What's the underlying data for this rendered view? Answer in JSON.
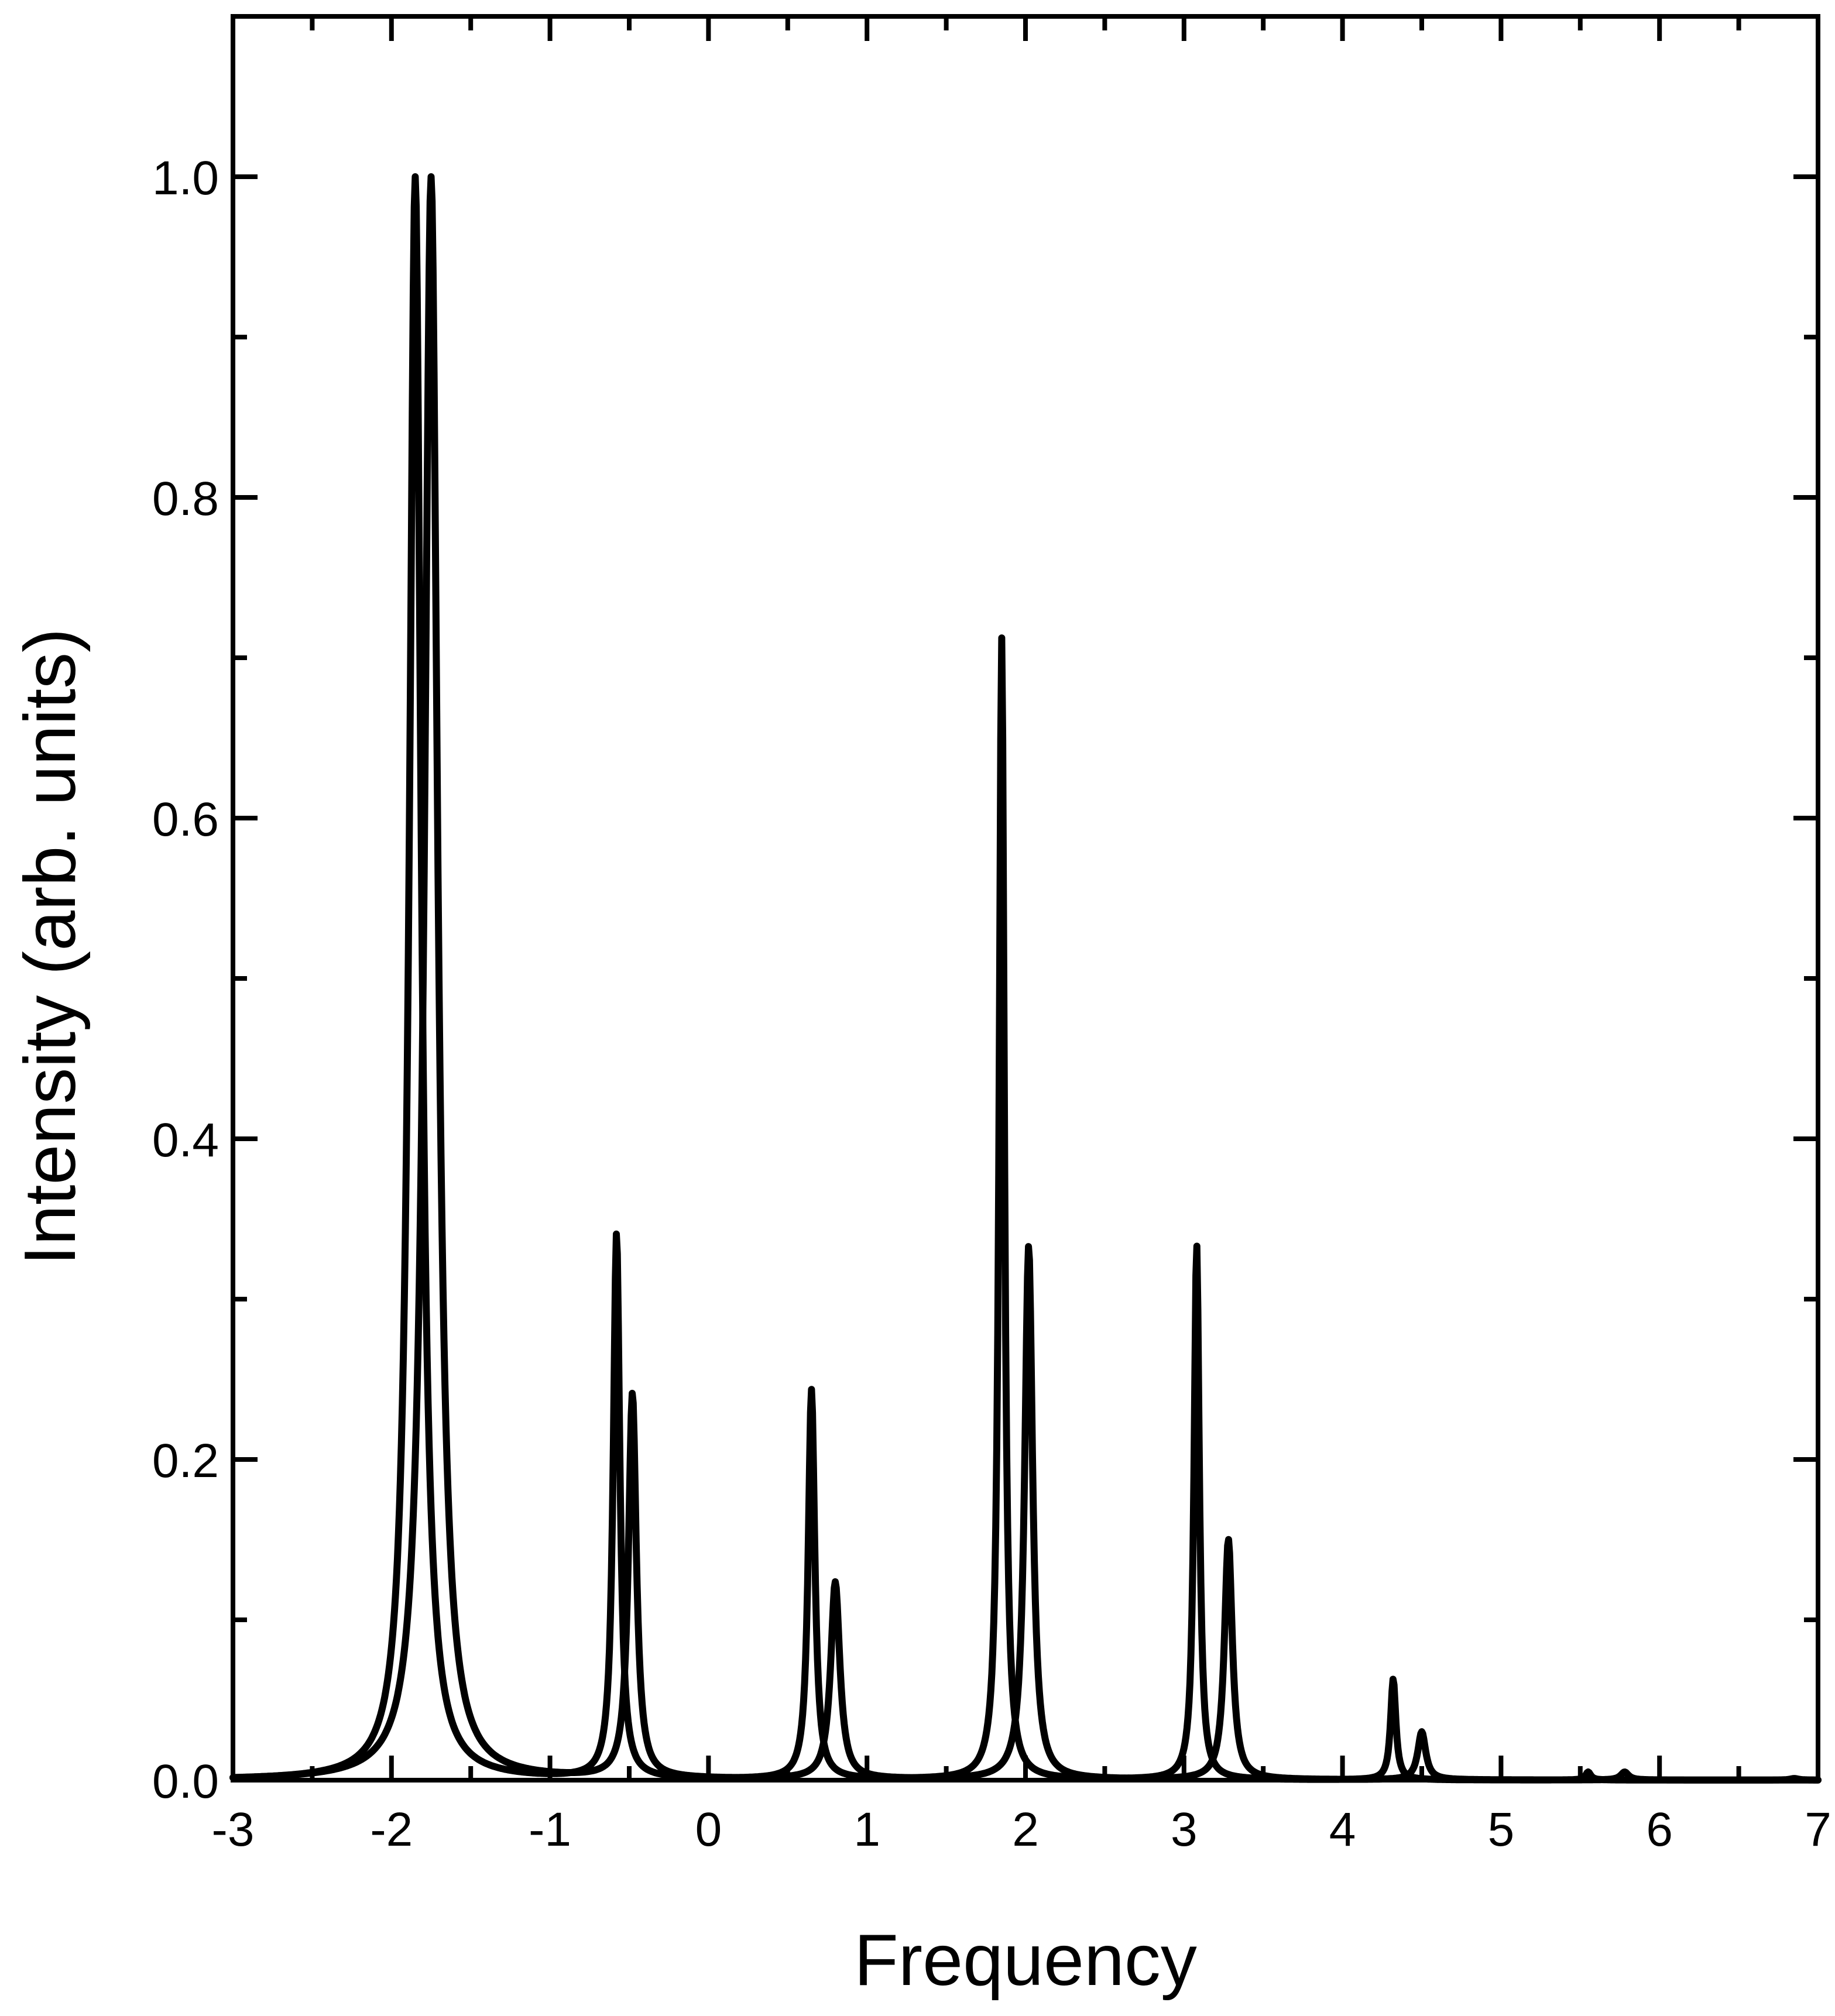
{
  "chart_data": {
    "type": "line",
    "title": "",
    "xlabel": "Frequency",
    "ylabel": "Intensity (arb. units)",
    "xlim": [
      -3,
      7
    ],
    "ylim": [
      0,
      1.1
    ],
    "xticks": [
      -3,
      -2,
      -1,
      0,
      1,
      2,
      3,
      4,
      5,
      6,
      7
    ],
    "xtick_labels": [
      "-3",
      "-2",
      "-1",
      "0",
      "1",
      "2",
      "3",
      "4",
      "5",
      "6",
      "7"
    ],
    "yticks_major": [
      0.0,
      0.2,
      0.4,
      0.6,
      0.8,
      1.0
    ],
    "ytick_labels": [
      "0.0",
      "0.2",
      "0.4",
      "0.6",
      "0.8",
      "1.0"
    ],
    "yticks_minor": [
      0.1,
      0.3,
      0.5,
      0.7,
      0.9
    ],
    "xticks_minor": [
      -2.5,
      -1.5,
      -0.5,
      0.5,
      1.5,
      2.5,
      3.5,
      4.5,
      5.5,
      6.5
    ],
    "grid": false,
    "line_color": "#000000",
    "series": [
      {
        "peaks": [
          {
            "x": -1.85,
            "y": 1.0,
            "w": 0.045
          },
          {
            "x": -0.58,
            "y": 0.34,
            "w": 0.025
          },
          {
            "x": 0.65,
            "y": 0.243,
            "w": 0.025
          },
          {
            "x": 1.85,
            "y": 0.712,
            "w": 0.02
          },
          {
            "x": 3.08,
            "y": 0.334,
            "w": 0.02
          },
          {
            "x": 4.32,
            "y": 0.063,
            "w": 0.02
          },
          {
            "x": 5.55,
            "y": 0.005,
            "w": 0.02
          }
        ]
      },
      {
        "peaks": [
          {
            "x": -1.75,
            "y": 1.0,
            "w": 0.05
          },
          {
            "x": -0.48,
            "y": 0.24,
            "w": 0.03
          },
          {
            "x": 0.8,
            "y": 0.123,
            "w": 0.035
          },
          {
            "x": 2.02,
            "y": 0.333,
            "w": 0.03
          },
          {
            "x": 3.28,
            "y": 0.15,
            "w": 0.03
          },
          {
            "x": 4.5,
            "y": 0.03,
            "w": 0.03
          },
          {
            "x": 5.78,
            "y": 0.005,
            "w": 0.03
          },
          {
            "x": 6.85,
            "y": 0.001,
            "w": 0.03
          }
        ]
      }
    ]
  }
}
